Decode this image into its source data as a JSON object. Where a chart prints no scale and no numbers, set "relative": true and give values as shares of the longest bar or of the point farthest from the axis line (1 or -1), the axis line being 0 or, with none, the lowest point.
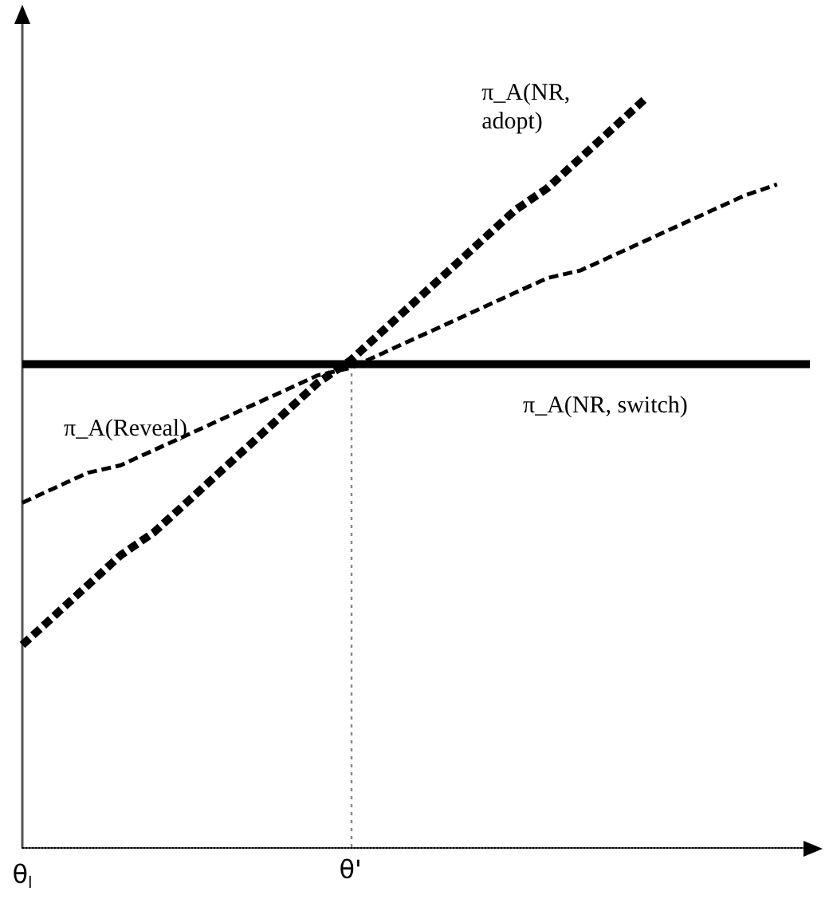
{
  "chart_data": {
    "type": "line",
    "relative": true,
    "categories": [
      "θ$_{l}$",
      null,
      null,
      null,
      null,
      null,
      null,
      null,
      null,
      null,
      "θ'",
      null,
      null,
      null,
      null,
      null,
      null,
      null,
      null,
      null,
      null,
      null,
      null,
      null,
      null
    ],
    "grid": false,
    "legend": false,
    "marker": "none",
    "series": [
      {
        "name": "π_A(NR, switch)",
        "color": "#000000",
        "values": [
          0.645,
          0.645,
          0.645,
          0.645,
          0.645,
          0.645,
          0.645,
          0.645,
          0.645,
          0.645,
          0.645,
          0.645,
          0.645,
          0.645,
          0.645,
          0.645,
          0.645,
          0.645,
          0.645,
          0.645,
          0.645,
          0.645,
          0.645,
          0.645,
          0.645
        ],
        "line_style": "solid"
      },
      {
        "name": "π_A(NR, adopt)",
        "color": "#000000",
        "values": [
          0.27,
          0.31,
          0.35,
          0.39,
          0.42,
          0.46,
          0.5,
          0.54,
          0.58,
          0.62,
          0.65,
          0.69,
          0.73,
          0.77,
          0.81,
          0.85,
          0.88,
          0.92,
          0.96,
          1,
          null,
          null,
          null,
          null,
          null
        ],
        "line_style": "dashed"
      },
      {
        "name": "π_A(Reveal)",
        "color": "#000000",
        "values": [
          0.46,
          0.48,
          0.5,
          0.51,
          0.53,
          0.55,
          0.57,
          0.59,
          0.61,
          0.63,
          0.64,
          0.66,
          0.68,
          0.7,
          0.72,
          0.74,
          0.76,
          0.77,
          0.79,
          0.81,
          0.83,
          0.85,
          0.87,
          0.885,
          null
        ],
        "line_style": "dashed"
      }
    ],
    "ref_lines": [
      {
        "axis": "x",
        "value": "θ'",
        "color": "#888888",
        "line_style": "dotted"
      }
    ]
  }
}
